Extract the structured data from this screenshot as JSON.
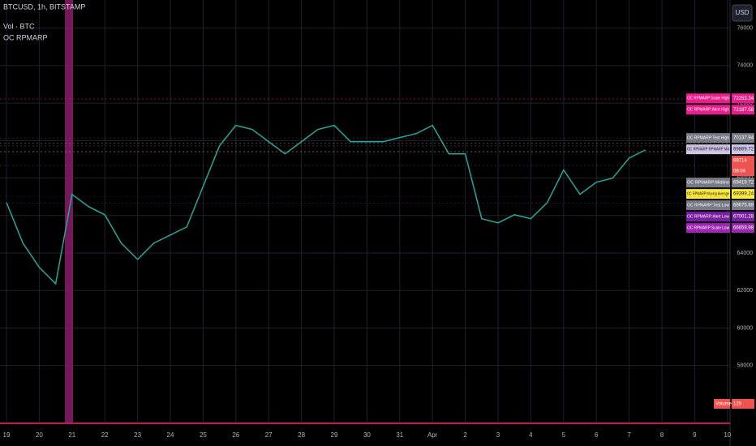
{
  "chart_data": {
    "type": "line",
    "currency_button": "USD",
    "indicators": [
      "Vol · BTC",
      "OC RPMARP"
    ],
    "categories": [
      "19",
      null,
      "20",
      null,
      "21",
      null,
      "22",
      null,
      "23",
      null,
      "24",
      null,
      "25",
      null,
      "26",
      null,
      "27",
      null,
      "28",
      null,
      "29",
      null,
      "30",
      null,
      "31",
      null,
      "Apr",
      null,
      "2",
      null,
      "3",
      null,
      "4",
      null,
      "5",
      null,
      "6",
      null,
      "7",
      null,
      "8",
      null,
      "9",
      null,
      "10"
    ],
    "series": [
      {
        "name": "BTCUSD, 1h, BITSTAMP",
        "color": "#26a69a",
        "values": [
          66690,
          64530,
          63230,
          62360,
          67130,
          66480,
          66040,
          64530,
          63660,
          64530,
          64960,
          65390,
          67560,
          69720,
          70810,
          70590,
          69940,
          69290,
          69940,
          70590,
          70810,
          69940,
          69940,
          69940,
          70160,
          70370,
          70810,
          69290,
          69290,
          65830,
          65610,
          66040,
          65830,
          66690,
          68430,
          67130,
          67780,
          68000,
          69070,
          69500,
          null,
          null,
          null,
          null,
          null
        ]
      }
    ],
    "ylim": [
      55000,
      77500
    ],
    "yticks": [
      58000,
      60000,
      62000,
      64000,
      66000,
      68000,
      70000,
      72000,
      74000,
      76000
    ],
    "grid": true,
    "price_labels": [
      {
        "name": "OC RPMARP:Scale High",
        "value": 72253.34,
        "color": "#e91e8c",
        "text_color": "#ffffff"
      },
      {
        "name": "OC RPMARP:Alert High",
        "value": 72187.58,
        "color": "#e91e8c",
        "text_color": "#ffffff"
      },
      {
        "name": "OC RPMARP:Test High",
        "value": 70137.94,
        "color": "#787b86",
        "text_color": "#ffffff"
      },
      {
        "name": "OC RPMARP:RPMARP MA",
        "value": 69869.72,
        "color": "#d1c4e9",
        "text_color": "#131722"
      },
      {
        "name": "",
        "value": 69714,
        "sublabel": "08:04",
        "color": "#ef5350",
        "text_color": "#ffffff"
      },
      {
        "name": "OC RPMARP:Midline",
        "value": 69419.72,
        "color": "#787b86",
        "text_color": "#ffffff"
      },
      {
        "name": "OC RPMARP:Moving Average",
        "value": 69399.24,
        "color": "#ffeb3b",
        "text_color": "#131722"
      },
      {
        "name": "OC RPMARP:Test Low",
        "value": 68675.88,
        "color": "#787b86",
        "text_color": "#ffffff"
      },
      {
        "name": "OC RPMARP:Alert Low",
        "value": 67001.28,
        "color": "#7b1fa2",
        "text_color": "#ffffff"
      },
      {
        "name": "OC RPMARP:Scale Low",
        "value": 66659.98,
        "color": "#9c27b0",
        "text_color": "#ffffff"
      }
    ],
    "volume_label": {
      "name": "Volume",
      "value": 129
    }
  }
}
